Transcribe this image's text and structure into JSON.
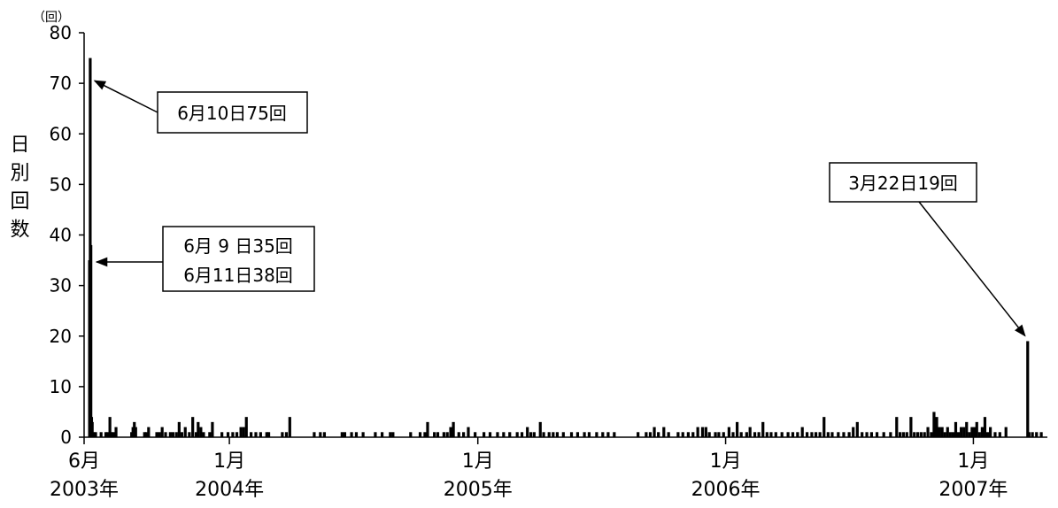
{
  "chart_data": {
    "type": "bar",
    "ylabel": "日別回数",
    "y_unit": "（回）",
    "ylim": [
      0,
      80
    ],
    "y_ticks": [
      "0",
      "10",
      "20",
      "30",
      "40",
      "50",
      "60",
      "70",
      "80"
    ],
    "x_tick_labels": [
      {
        "month": "6月",
        "year": "2003年",
        "date": "2003-06-01"
      },
      {
        "month": "1月",
        "year": "2004年",
        "date": "2004-01-01"
      },
      {
        "month": "1月",
        "year": "2005年",
        "date": "2005-01-01"
      },
      {
        "month": "1月",
        "year": "2006年",
        "date": "2006-01-01"
      },
      {
        "month": "1月",
        "year": "2007年",
        "date": "2007-01-01"
      }
    ],
    "xlim": [
      "2003-06-01",
      "2007-04-20"
    ],
    "annotations": {
      "peak1": {
        "text": "6月10日75回",
        "date": "2003-06-10",
        "value": 75
      },
      "peak2": {
        "line1": "6月 9 日35回",
        "line2": "6月11日38回",
        "date": "2003-06-09",
        "value": 35
      },
      "peak3": {
        "text": "3月22日19回",
        "date": "2007-03-22",
        "value": 19
      }
    },
    "series": [
      {
        "points": [
          [
            "2003-06-09",
            35
          ],
          [
            "2003-06-10",
            75
          ],
          [
            "2003-06-11",
            38
          ],
          [
            "2003-06-12",
            4
          ],
          [
            "2003-06-13",
            3
          ],
          [
            "2003-06-15",
            1
          ],
          [
            "2003-06-18",
            1
          ],
          [
            "2003-06-26",
            1
          ],
          [
            "2003-07-03",
            1
          ],
          [
            "2003-07-06",
            1
          ],
          [
            "2003-07-09",
            4
          ],
          [
            "2003-07-11",
            1
          ],
          [
            "2003-07-14",
            1
          ],
          [
            "2003-07-18",
            2
          ],
          [
            "2003-08-10",
            1
          ],
          [
            "2003-08-12",
            2
          ],
          [
            "2003-08-14",
            3
          ],
          [
            "2003-08-16",
            2
          ],
          [
            "2003-08-29",
            1
          ],
          [
            "2003-09-01",
            1
          ],
          [
            "2003-09-04",
            2
          ],
          [
            "2003-09-16",
            1
          ],
          [
            "2003-09-20",
            1
          ],
          [
            "2003-09-24",
            2
          ],
          [
            "2003-09-29",
            1
          ],
          [
            "2003-10-06",
            1
          ],
          [
            "2003-10-10",
            1
          ],
          [
            "2003-10-15",
            1
          ],
          [
            "2003-10-19",
            3
          ],
          [
            "2003-10-23",
            1
          ],
          [
            "2003-10-28",
            2
          ],
          [
            "2003-11-03",
            1
          ],
          [
            "2003-11-08",
            4
          ],
          [
            "2003-11-13",
            1
          ],
          [
            "2003-11-16",
            3
          ],
          [
            "2003-11-20",
            2
          ],
          [
            "2003-11-24",
            1
          ],
          [
            "2003-12-03",
            1
          ],
          [
            "2003-12-07",
            3
          ],
          [
            "2003-12-21",
            1
          ],
          [
            "2003-12-30",
            1
          ],
          [
            "2004-01-06",
            1
          ],
          [
            "2004-01-12",
            1
          ],
          [
            "2004-01-18",
            2
          ],
          [
            "2004-01-22",
            2
          ],
          [
            "2004-01-26",
            4
          ],
          [
            "2004-02-02",
            1
          ],
          [
            "2004-02-09",
            1
          ],
          [
            "2004-02-16",
            1
          ],
          [
            "2004-02-25",
            1
          ],
          [
            "2004-02-28",
            1
          ],
          [
            "2004-03-19",
            1
          ],
          [
            "2004-03-25",
            1
          ],
          [
            "2004-03-30",
            4
          ],
          [
            "2004-05-05",
            1
          ],
          [
            "2004-05-14",
            1
          ],
          [
            "2004-05-20",
            1
          ],
          [
            "2004-06-15",
            1
          ],
          [
            "2004-06-19",
            1
          ],
          [
            "2004-06-29",
            1
          ],
          [
            "2004-07-06",
            1
          ],
          [
            "2004-07-16",
            1
          ],
          [
            "2004-08-03",
            1
          ],
          [
            "2004-08-13",
            1
          ],
          [
            "2004-08-25",
            1
          ],
          [
            "2004-08-29",
            1
          ],
          [
            "2004-09-24",
            1
          ],
          [
            "2004-10-08",
            1
          ],
          [
            "2004-10-15",
            1
          ],
          [
            "2004-10-19",
            3
          ],
          [
            "2004-10-29",
            1
          ],
          [
            "2004-11-03",
            1
          ],
          [
            "2004-11-12",
            1
          ],
          [
            "2004-11-17",
            1
          ],
          [
            "2004-11-22",
            2
          ],
          [
            "2004-11-26",
            3
          ],
          [
            "2004-12-04",
            1
          ],
          [
            "2004-12-11",
            1
          ],
          [
            "2004-12-18",
            2
          ],
          [
            "2004-12-28",
            1
          ],
          [
            "2005-01-10",
            1
          ],
          [
            "2005-01-19",
            1
          ],
          [
            "2005-01-30",
            1
          ],
          [
            "2005-02-08",
            1
          ],
          [
            "2005-02-17",
            1
          ],
          [
            "2005-02-28",
            1
          ],
          [
            "2005-03-07",
            1
          ],
          [
            "2005-03-15",
            2
          ],
          [
            "2005-03-20",
            1
          ],
          [
            "2005-03-25",
            1
          ],
          [
            "2005-04-03",
            3
          ],
          [
            "2005-04-08",
            1
          ],
          [
            "2005-04-16",
            1
          ],
          [
            "2005-04-22",
            1
          ],
          [
            "2005-04-28",
            1
          ],
          [
            "2005-05-07",
            1
          ],
          [
            "2005-05-19",
            1
          ],
          [
            "2005-05-28",
            1
          ],
          [
            "2005-06-07",
            1
          ],
          [
            "2005-06-14",
            1
          ],
          [
            "2005-06-25",
            1
          ],
          [
            "2005-07-04",
            1
          ],
          [
            "2005-07-12",
            1
          ],
          [
            "2005-07-21",
            1
          ],
          [
            "2005-08-25",
            1
          ],
          [
            "2005-09-06",
            1
          ],
          [
            "2005-09-12",
            1
          ],
          [
            "2005-09-18",
            2
          ],
          [
            "2005-09-24",
            1
          ],
          [
            "2005-10-02",
            2
          ],
          [
            "2005-10-09",
            1
          ],
          [
            "2005-10-23",
            1
          ],
          [
            "2005-10-30",
            1
          ],
          [
            "2005-11-07",
            1
          ],
          [
            "2005-11-14",
            1
          ],
          [
            "2005-11-21",
            2
          ],
          [
            "2005-11-28",
            2
          ],
          [
            "2005-12-03",
            2
          ],
          [
            "2005-12-08",
            1
          ],
          [
            "2005-12-17",
            1
          ],
          [
            "2005-12-22",
            1
          ],
          [
            "2005-12-29",
            1
          ],
          [
            "2006-01-06",
            2
          ],
          [
            "2006-01-12",
            1
          ],
          [
            "2006-01-18",
            3
          ],
          [
            "2006-01-24",
            1
          ],
          [
            "2006-02-01",
            1
          ],
          [
            "2006-02-06",
            2
          ],
          [
            "2006-02-13",
            1
          ],
          [
            "2006-02-19",
            1
          ],
          [
            "2006-02-25",
            3
          ],
          [
            "2006-03-03",
            1
          ],
          [
            "2006-03-09",
            1
          ],
          [
            "2006-03-16",
            1
          ],
          [
            "2006-03-25",
            1
          ],
          [
            "2006-04-03",
            1
          ],
          [
            "2006-04-10",
            1
          ],
          [
            "2006-04-17",
            1
          ],
          [
            "2006-04-24",
            2
          ],
          [
            "2006-05-01",
            1
          ],
          [
            "2006-05-08",
            1
          ],
          [
            "2006-05-14",
            1
          ],
          [
            "2006-05-20",
            1
          ],
          [
            "2006-05-26",
            4
          ],
          [
            "2006-06-01",
            1
          ],
          [
            "2006-06-07",
            1
          ],
          [
            "2006-06-16",
            1
          ],
          [
            "2006-06-24",
            1
          ],
          [
            "2006-07-02",
            1
          ],
          [
            "2006-07-08",
            2
          ],
          [
            "2006-07-14",
            3
          ],
          [
            "2006-07-21",
            1
          ],
          [
            "2006-07-28",
            1
          ],
          [
            "2006-08-04",
            1
          ],
          [
            "2006-08-12",
            1
          ],
          [
            "2006-08-22",
            1
          ],
          [
            "2006-09-01",
            1
          ],
          [
            "2006-09-10",
            4
          ],
          [
            "2006-09-15",
            1
          ],
          [
            "2006-09-20",
            1
          ],
          [
            "2006-09-25",
            1
          ],
          [
            "2006-10-01",
            4
          ],
          [
            "2006-10-06",
            1
          ],
          [
            "2006-10-11",
            1
          ],
          [
            "2006-10-16",
            1
          ],
          [
            "2006-10-21",
            1
          ],
          [
            "2006-10-26",
            2
          ],
          [
            "2006-10-31",
            1
          ],
          [
            "2006-11-04",
            5
          ],
          [
            "2006-11-08",
            4
          ],
          [
            "2006-11-12",
            2
          ],
          [
            "2006-11-16",
            2
          ],
          [
            "2006-11-20",
            1
          ],
          [
            "2006-11-24",
            2
          ],
          [
            "2006-11-28",
            1
          ],
          [
            "2006-12-02",
            1
          ],
          [
            "2006-12-06",
            3
          ],
          [
            "2006-12-10",
            1
          ],
          [
            "2006-12-14",
            2
          ],
          [
            "2006-12-18",
            2
          ],
          [
            "2006-12-22",
            3
          ],
          [
            "2006-12-26",
            1
          ],
          [
            "2006-12-30",
            2
          ],
          [
            "2007-01-03",
            2
          ],
          [
            "2007-01-06",
            3
          ],
          [
            "2007-01-10",
            1
          ],
          [
            "2007-01-14",
            2
          ],
          [
            "2007-01-18",
            4
          ],
          [
            "2007-01-22",
            1
          ],
          [
            "2007-01-26",
            2
          ],
          [
            "2007-02-02",
            1
          ],
          [
            "2007-02-09",
            1
          ],
          [
            "2007-02-18",
            2
          ],
          [
            "2007-03-22",
            19
          ],
          [
            "2007-03-24",
            1
          ],
          [
            "2007-03-29",
            1
          ],
          [
            "2007-04-04",
            1
          ],
          [
            "2007-04-11",
            1
          ]
        ]
      }
    ]
  }
}
